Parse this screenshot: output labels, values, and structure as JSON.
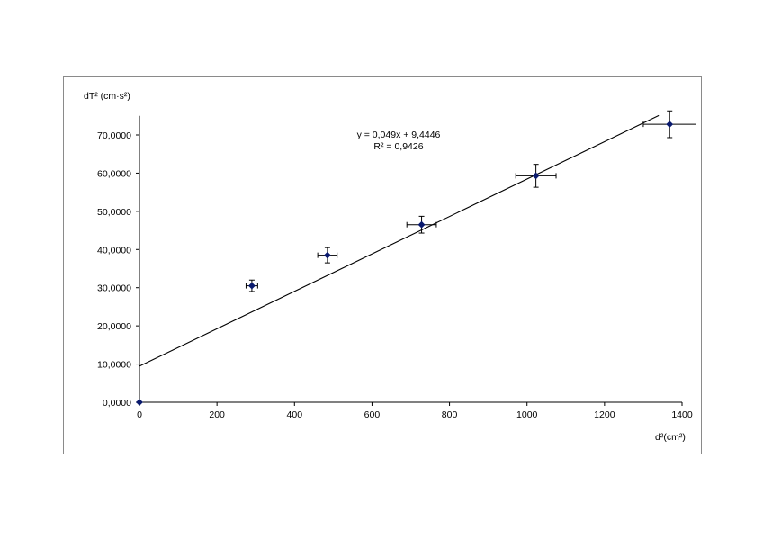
{
  "chart_data": {
    "type": "scatter",
    "title": "",
    "xlabel": "d²(cm²)",
    "ylabel": "dT² (cm·s²)",
    "xlim": [
      0,
      1400
    ],
    "ylim": [
      0,
      75
    ],
    "xticks": [
      0,
      200,
      400,
      600,
      800,
      1000,
      1200,
      1400
    ],
    "xtick_labels": [
      "0",
      "200",
      "400",
      "600",
      "800",
      "1000",
      "1200",
      "1400"
    ],
    "yticks": [
      0,
      10,
      20,
      30,
      40,
      50,
      60,
      70
    ],
    "ytick_labels": [
      "0,0000",
      "10,0000",
      "20,0000",
      "30,0000",
      "40,0000",
      "50,0000",
      "60,0000",
      "70,0000"
    ],
    "grid": false,
    "legend": "none",
    "series": [
      {
        "marker_color": "#0a1a6e",
        "points": [
          {
            "x": 0,
            "y": 0,
            "xerr": 0,
            "yerr": 0
          },
          {
            "x": 290,
            "y": 30.5,
            "xerr": 15,
            "yerr": 1.5
          },
          {
            "x": 485,
            "y": 38.5,
            "xerr": 25,
            "yerr": 2
          },
          {
            "x": 728,
            "y": 46.5,
            "xerr": 38,
            "yerr": 2.2
          },
          {
            "x": 1023,
            "y": 59.3,
            "xerr": 52,
            "yerr": 3
          },
          {
            "x": 1368,
            "y": 72.8,
            "xerr": 68,
            "yerr": 3.5
          }
        ]
      }
    ],
    "trendline": {
      "slope": 0.049,
      "intercept": 9.4446,
      "x_range": [
        0,
        1340
      ],
      "color": "#000000"
    },
    "annotations": {
      "equation": "y = 0,049x + 9,4446",
      "r_squared": "R² = 0,9426"
    }
  }
}
